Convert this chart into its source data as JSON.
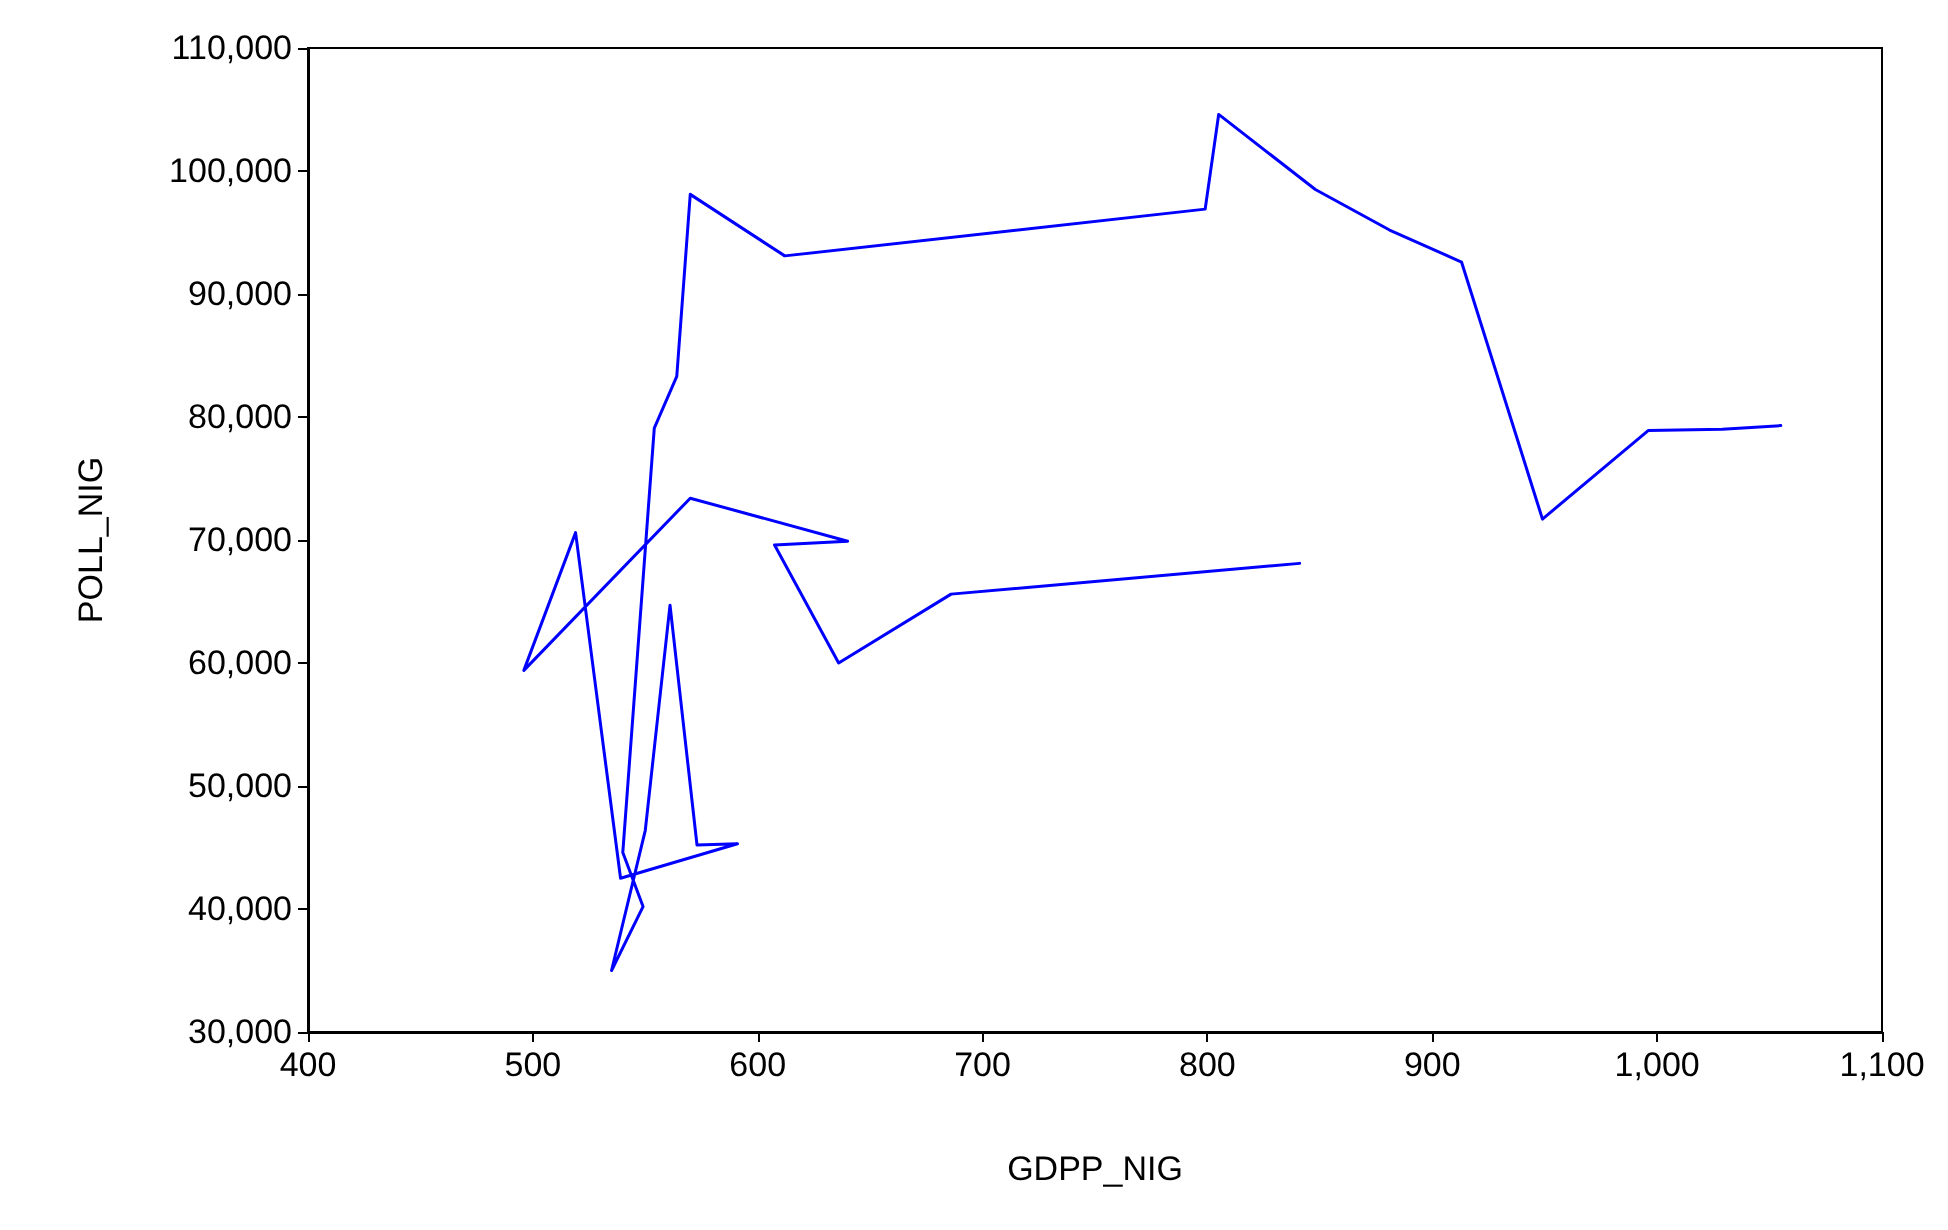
{
  "chart_data": {
    "type": "line",
    "xlabel": "GDPP_NIG",
    "ylabel": "POLL_NIG",
    "x": [
      841,
      686,
      636,
      607.5,
      640,
      570,
      496,
      519,
      539,
      591,
      573,
      561,
      550,
      535,
      549,
      540,
      554,
      564,
      570,
      612,
      799,
      805,
      848,
      881,
      913,
      949,
      996,
      1029,
      1055
    ],
    "series": [
      {
        "color": "#0000ff",
        "values": [
          68100,
          65600,
          60000,
          69600,
          69900,
          73400,
          59400,
          70600,
          42500,
          45300,
          45200,
          64700,
          46400,
          35000,
          40200,
          44600,
          79100,
          83300,
          98100,
          93100,
          96900,
          104600,
          98500,
          95200,
          92600,
          71700,
          78900,
          79000,
          79300
        ]
      }
    ],
    "xlim": [
      400,
      1100
    ],
    "xticks": [
      400,
      500,
      600,
      700,
      800,
      900,
      {
        "value": 1000,
        "label": "1,000"
      },
      {
        "value": 1100,
        "label": "1,100"
      }
    ],
    "ylim": [
      30000,
      110000
    ],
    "yticks": [
      {
        "value": 30000,
        "label": "30,000"
      },
      {
        "value": 40000,
        "label": "40,000"
      },
      {
        "value": 50000,
        "label": "50,000"
      },
      {
        "value": 60000,
        "label": "60,000"
      },
      {
        "value": 70000,
        "label": "70,000"
      },
      {
        "value": 80000,
        "label": "80,000"
      },
      {
        "value": 90000,
        "label": "90,000"
      },
      {
        "value": 100000,
        "label": "100,000"
      },
      {
        "value": 110000,
        "label": "110,000"
      }
    ],
    "grid": false,
    "marker": "none",
    "line_style": "solid"
  }
}
